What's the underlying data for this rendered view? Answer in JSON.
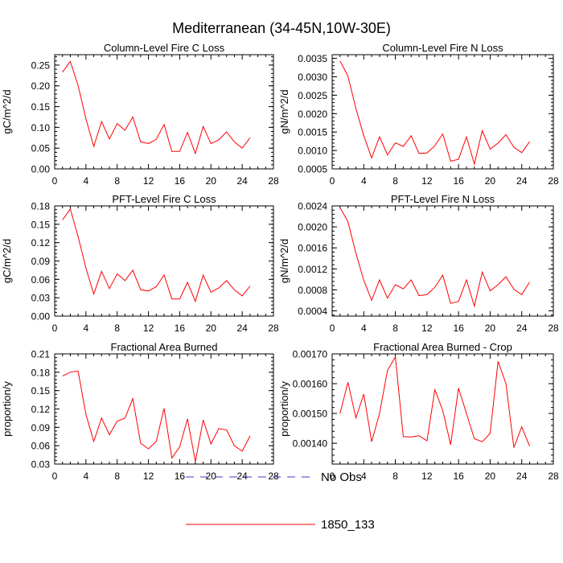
{
  "figure_title": "Mediterranean (34-45N,10W-30E)",
  "legend": [
    {
      "label": "No Obs",
      "color": "#3c3cc8",
      "style": "dashed"
    },
    {
      "label": "1850_133",
      "color": "#ff0000",
      "style": "solid"
    }
  ],
  "chart_data": [
    {
      "type": "line",
      "title": "Column-Level Fire C Loss",
      "xlabel": "",
      "ylabel": "gC/m^2/d",
      "xlim": [
        0,
        28
      ],
      "ylim": [
        0,
        0.275
      ],
      "xticks": [
        "0",
        "4",
        "8",
        "12",
        "16",
        "20",
        "24",
        "28"
      ],
      "yticks": [
        "0.00",
        "0.05",
        "0.10",
        "0.15",
        "0.20",
        "0.25"
      ],
      "series": [
        {
          "name": "1850_133",
          "x": [
            1,
            2,
            3,
            4,
            5,
            6,
            7,
            8,
            9,
            10,
            11,
            12,
            13,
            14,
            15,
            16,
            17,
            18,
            19,
            20,
            21,
            22,
            23,
            24,
            25
          ],
          "values": [
            0.233,
            0.259,
            0.201,
            0.12,
            0.054,
            0.114,
            0.072,
            0.109,
            0.093,
            0.125,
            0.065,
            0.061,
            0.071,
            0.107,
            0.042,
            0.042,
            0.088,
            0.037,
            0.102,
            0.061,
            0.07,
            0.089,
            0.065,
            0.05,
            0.075
          ]
        }
      ]
    },
    {
      "type": "line",
      "title": "Column-Level Fire N Loss",
      "xlabel": "",
      "ylabel": "gN/m^2/d",
      "xlim": [
        0,
        28
      ],
      "ylim": [
        0.0005,
        0.0036
      ],
      "xticks": [
        "0",
        "4",
        "8",
        "12",
        "16",
        "20",
        "24",
        "28"
      ],
      "yticks": [
        "0.0005",
        "0.0010",
        "0.0015",
        "0.0020",
        "0.0025",
        "0.0030",
        "0.0035"
      ],
      "series": [
        {
          "name": "1850_133",
          "x": [
            1,
            2,
            3,
            4,
            5,
            6,
            7,
            8,
            9,
            10,
            11,
            12,
            13,
            14,
            15,
            16,
            17,
            18,
            19,
            20,
            21,
            22,
            23,
            24,
            25
          ],
          "values": [
            0.00343,
            0.00302,
            0.00214,
            0.0014,
            0.0008,
            0.00137,
            0.00088,
            0.00121,
            0.00111,
            0.0014,
            0.00092,
            0.00093,
            0.00113,
            0.00145,
            0.00071,
            0.00076,
            0.00137,
            0.00063,
            0.00154,
            0.00104,
            0.0012,
            0.00143,
            0.00109,
            0.00094,
            0.00124
          ]
        }
      ]
    },
    {
      "type": "line",
      "title": "PFT-Level Fire C Loss",
      "xlabel": "",
      "ylabel": "gC/m^2/d",
      "xlim": [
        0,
        28
      ],
      "ylim": [
        0,
        0.18
      ],
      "xticks": [
        "0",
        "4",
        "8",
        "12",
        "16",
        "20",
        "24",
        "28"
      ],
      "yticks": [
        "0.00",
        "0.03",
        "0.06",
        "0.09",
        "0.12",
        "0.15",
        "0.18"
      ],
      "series": [
        {
          "name": "1850_133",
          "x": [
            1,
            2,
            3,
            4,
            5,
            6,
            7,
            8,
            9,
            10,
            11,
            12,
            13,
            14,
            15,
            16,
            17,
            18,
            19,
            20,
            21,
            22,
            23,
            24,
            25
          ],
          "values": [
            0.157,
            0.175,
            0.13,
            0.078,
            0.036,
            0.073,
            0.045,
            0.069,
            0.058,
            0.075,
            0.043,
            0.041,
            0.048,
            0.067,
            0.028,
            0.028,
            0.055,
            0.024,
            0.067,
            0.039,
            0.046,
            0.058,
            0.043,
            0.033,
            0.049
          ]
        }
      ]
    },
    {
      "type": "line",
      "title": "PFT-Level Fire N Loss",
      "xlabel": "",
      "ylabel": "gN/m^2/d",
      "xlim": [
        0,
        28
      ],
      "ylim": [
        0.0003,
        0.0024
      ],
      "xticks": [
        "0",
        "4",
        "8",
        "12",
        "16",
        "20",
        "24",
        "28"
      ],
      "yticks": [
        "0.0004",
        "0.0008",
        "0.0012",
        "0.0016",
        "0.0020",
        "0.0024"
      ],
      "series": [
        {
          "name": "1850_133",
          "x": [
            1,
            2,
            3,
            4,
            5,
            6,
            7,
            8,
            9,
            10,
            11,
            12,
            13,
            14,
            15,
            16,
            17,
            18,
            19,
            20,
            21,
            22,
            23,
            24,
            25
          ],
          "values": [
            0.00237,
            0.0021,
            0.0015,
            0.00098,
            0.0006,
            0.00099,
            0.00064,
            0.0009,
            0.00082,
            0.00099,
            0.00069,
            0.00071,
            0.00085,
            0.00108,
            0.00054,
            0.00058,
            0.00099,
            0.00049,
            0.00114,
            0.00078,
            0.0009,
            0.00105,
            0.00081,
            0.00071,
            0.00095
          ]
        }
      ]
    },
    {
      "type": "line",
      "title": "Fractional Area Burned",
      "xlabel": "",
      "ylabel": "proportion/y",
      "xlim": [
        0,
        28
      ],
      "ylim": [
        0.03,
        0.21
      ],
      "xticks": [
        "0",
        "4",
        "8",
        "12",
        "16",
        "20",
        "24",
        "28"
      ],
      "yticks": [
        "0.03",
        "0.06",
        "0.09",
        "0.12",
        "0.15",
        "0.18",
        "0.21"
      ],
      "series": [
        {
          "name": "1850_133",
          "x": [
            1,
            2,
            3,
            4,
            5,
            6,
            7,
            8,
            9,
            10,
            11,
            12,
            13,
            14,
            15,
            16,
            17,
            18,
            19,
            20,
            21,
            22,
            23,
            24,
            25
          ],
          "values": [
            0.174,
            0.18,
            0.182,
            0.111,
            0.067,
            0.105,
            0.078,
            0.1,
            0.105,
            0.137,
            0.064,
            0.055,
            0.067,
            0.121,
            0.04,
            0.058,
            0.104,
            0.034,
            0.102,
            0.063,
            0.088,
            0.086,
            0.06,
            0.051,
            0.076
          ]
        }
      ]
    },
    {
      "type": "line",
      "title": "Fractional Area Burned - Crop",
      "xlabel": "",
      "ylabel": "proportion/y",
      "xlim": [
        0,
        28
      ],
      "ylim": [
        0.00133,
        0.0017
      ],
      "xticks": [
        "0",
        "4",
        "8",
        "12",
        "16",
        "20",
        "24",
        "28"
      ],
      "yticks": [
        "0.00140",
        "0.00150",
        "0.00160",
        "0.00170"
      ],
      "series": [
        {
          "name": "1850_133",
          "x": [
            1,
            2,
            3,
            4,
            5,
            6,
            7,
            8,
            9,
            10,
            11,
            12,
            13,
            14,
            15,
            16,
            17,
            18,
            19,
            20,
            21,
            22,
            23,
            24,
            25
          ],
          "values": [
            0.0015,
            0.001605,
            0.001485,
            0.001565,
            0.001405,
            0.0015,
            0.001645,
            0.00169,
            0.001422,
            0.001421,
            0.001425,
            0.001408,
            0.00158,
            0.00151,
            0.001395,
            0.001585,
            0.0015,
            0.001415,
            0.001405,
            0.001433,
            0.001675,
            0.0016,
            0.001385,
            0.001455,
            0.00139
          ]
        }
      ]
    }
  ]
}
